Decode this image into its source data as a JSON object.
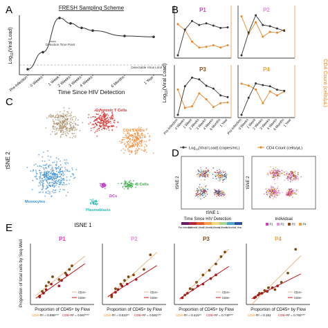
{
  "colors": {
    "viral": "#333333",
    "cd4": "#e8832a",
    "p1": "#d93ab6",
    "p2": "#e58fd6",
    "p3": "#8a4b1a",
    "p4": "#e8a23a",
    "cd4_line": "#e8b98a",
    "cd8_line": "#c0141c",
    "cd4_point": "#8a5200",
    "cd8_point": "#c0141c"
  },
  "panel_letters": [
    "A",
    "B",
    "C",
    "D",
    "E"
  ],
  "panel_a": {
    "title": "FRESH Sampling Scheme",
    "ylabel_pre": "Log",
    "ylabel_sub": "10",
    "ylabel_post": "(Viral Load)",
    "xlabel": "Time Since HIV Detection",
    "annot_detection": "Detection Time Point",
    "annot_limit": "Detectable Virus Limit",
    "ticks": [
      "Pre-Infection",
      "0 Weeks",
      "1 Week",
      "2 Weeks",
      "3 Weeks",
      "4 Weeks",
      "6 Months",
      "1 Year"
    ]
  },
  "panel_b": {
    "ylabel_left_pre": "Log",
    "ylabel_left_sub": "10",
    "ylabel_left_post": "(Viral Load)",
    "ylabel_right": "CD4 Count (cells/μL)",
    "ticks": [
      "Pre-Infection",
      "0 Weeks",
      "1 Week",
      "2 Weeks",
      "3 Weeks",
      "4 Weeks",
      "6 Months",
      "1 Year"
    ],
    "legend_viral_pre": "Log",
    "legend_viral_sub": "10",
    "legend_viral_post": "(Viral Load) (copies/mL)",
    "legend_cd4": "CD4 Count (cells/μL)"
  },
  "panel_c": {
    "xlabel": "tSNE 1",
    "ylabel": "tSNE 2",
    "clusters": [
      {
        "name": "NK Cells",
        "color": "#a8926e"
      },
      {
        "name": "Cytotoxic T Cells",
        "color": "#d92b2b"
      },
      {
        "name": "CD4 T Cells",
        "color": "#f08a35"
      },
      {
        "name": "Monocytes",
        "color": "#3a8fd6"
      },
      {
        "name": "DCs",
        "color": "#c03ac8"
      },
      {
        "name": "B Cells",
        "color": "#3aaa45"
      },
      {
        "name": "Plasmablasts",
        "color": "#2bbbb5"
      }
    ]
  },
  "panel_d": {
    "xlabel": "tSNE 1",
    "ylabel": "tSNE 2",
    "legend_time_title": "Time Since HIV Detection",
    "legend_time_items": [
      "Pre-Infection",
      "0 Weeks",
      "1 Week",
      "2 Weeks",
      "3 Weeks",
      "4 Weeks",
      "6 Months",
      "1 Year"
    ],
    "legend_time_colors": [
      "#6a1b6a",
      "#b0263d",
      "#e0582e",
      "#f2a04a",
      "#f4d77a",
      "#a8d38c",
      "#4fa6c9",
      "#2d4d9e"
    ],
    "legend_ind_title": "Individual",
    "legend_ind_items": [
      "P1",
      "P2",
      "P3",
      "P4"
    ]
  },
  "panel_e": {
    "ylabel": "Proportion of total cells by Seq-Well",
    "xlabel": "Proportion of CD45+ by Flow",
    "legend_cd4": "CD4+",
    "legend_cd8": "CD8+"
  },
  "chart_data": [
    {
      "type": "line",
      "panel": "A",
      "title": "FRESH Sampling Scheme",
      "xlabel": "Time Since HIV Detection",
      "ylabel": "Log10(Viral Load)",
      "categories": [
        "Pre-Infection",
        "0 Weeks",
        "1 Week",
        "2 Weeks",
        "3 Weeks",
        "4 Weeks",
        "6 Months",
        "1 Year"
      ],
      "series": [
        {
          "values": [
            0.3,
            2.2,
            6.0,
            5.4,
            4.9,
            4.6,
            4.0,
            3.9
          ]
        }
      ]
    },
    {
      "type": "line",
      "panel": "B",
      "xlabel": "",
      "ylabel": "Log10(Viral Load)",
      "y2label": "CD4 Count (cells/μL)",
      "categories": [
        "Pre-Infection",
        "0 Weeks",
        "1 Week",
        "2 Weeks",
        "3 Weeks",
        "4 Weeks",
        "6 Months",
        "1 Year"
      ],
      "panels": [
        {
          "name": "P1",
          "viral": [
            0.0,
            4.5,
            6.0,
            5.3,
            5.6,
            5.2,
            4.8,
            4.9
          ],
          "cd4": [
            1100,
            950,
            650,
            500,
            520,
            560,
            500,
            560
          ]
        },
        {
          "name": "P2",
          "viral": [
            0.0,
            4.0,
            7.0,
            5.3,
            5.1,
            4.7,
            4.3,
            null
          ],
          "cd4": [
            1300,
            850,
            1150,
            780,
            900,
            880,
            950,
            null
          ]
        },
        {
          "name": "P3",
          "viral": [
            0.0,
            5.0,
            6.5,
            6.2,
            5.1,
            4.6,
            3.4,
            3.1
          ],
          "cd4": [
            950,
            480,
            520,
            850,
            700,
            500,
            600,
            620
          ]
        },
        {
          "name": "P4",
          "viral": [
            0.0,
            3.0,
            5.5,
            5.2,
            5.0,
            4.4,
            4.2,
            null
          ],
          "cd4": [
            1100,
            1050,
            950,
            600,
            900,
            800,
            900,
            null
          ]
        }
      ]
    },
    {
      "type": "scatter",
      "panel": "E",
      "xlabel": "Proportion of CD45+ by Flow",
      "ylabel": "Proportion of total cells by Seq-Well",
      "panels": [
        {
          "name": "P1",
          "stat_cd4": "R² = 0.888***",
          "stat_cd8": "R² = 0.967***",
          "cd4": [
            [
              0.05,
              0.07
            ],
            [
              0.07,
              0.12
            ],
            [
              0.1,
              0.18
            ],
            [
              0.12,
              0.22
            ],
            [
              0.15,
              0.28
            ],
            [
              0.2,
              0.25
            ],
            [
              0.25,
              0.32
            ],
            [
              0.28,
              0.36
            ],
            [
              0.3,
              0.4
            ]
          ],
          "cd8": [
            [
              0.05,
              0.06
            ],
            [
              0.08,
              0.1
            ],
            [
              0.1,
              0.14
            ],
            [
              0.14,
              0.2
            ],
            [
              0.2,
              0.18
            ],
            [
              0.22,
              0.24
            ],
            [
              0.26,
              0.3
            ]
          ]
        },
        {
          "name": "P2",
          "stat_cd4": "R² = 0.523**",
          "stat_cd8": "R² = 0.581***",
          "cd4": [
            [
              0.05,
              0.06
            ],
            [
              0.08,
              0.15
            ],
            [
              0.12,
              0.2
            ],
            [
              0.15,
              0.24
            ],
            [
              0.18,
              0.28
            ],
            [
              0.22,
              0.3
            ],
            [
              0.3,
              0.36
            ],
            [
              0.35,
              0.52
            ]
          ],
          "cd8": [
            [
              0.05,
              0.08
            ],
            [
              0.08,
              0.11
            ],
            [
              0.1,
              0.14
            ],
            [
              0.13,
              0.18
            ],
            [
              0.17,
              0.2
            ],
            [
              0.24,
              0.25
            ]
          ]
        },
        {
          "name": "P3",
          "stat_cd4": "R² = 0.416**",
          "stat_cd8": "R² = 0.749***",
          "cd4": [
            [
              0.06,
              0.08
            ],
            [
              0.1,
              0.15
            ],
            [
              0.15,
              0.22
            ],
            [
              0.2,
              0.3
            ],
            [
              0.25,
              0.35
            ],
            [
              0.3,
              0.42
            ],
            [
              0.34,
              0.5
            ],
            [
              0.37,
              0.55
            ]
          ],
          "cd8": [
            [
              0.04,
              0.05
            ],
            [
              0.08,
              0.1
            ],
            [
              0.12,
              0.14
            ],
            [
              0.16,
              0.18
            ],
            [
              0.2,
              0.2
            ],
            [
              0.26,
              0.26
            ],
            [
              0.3,
              0.3
            ]
          ]
        },
        {
          "name": "P4",
          "stat_cd4": "R² = 0.162",
          "stat_cd8": "R² = 0.782***",
          "cd4": [
            [
              0.05,
              0.06
            ],
            [
              0.08,
              0.1
            ],
            [
              0.12,
              0.13
            ],
            [
              0.15,
              0.16
            ],
            [
              0.2,
              0.14
            ],
            [
              0.25,
              0.22
            ],
            [
              0.3,
              0.32
            ],
            [
              0.36,
              0.58
            ]
          ],
          "cd8": [
            [
              0.04,
              0.05
            ],
            [
              0.07,
              0.08
            ],
            [
              0.1,
              0.1
            ],
            [
              0.14,
              0.12
            ],
            [
              0.18,
              0.16
            ],
            [
              0.22,
              0.18
            ]
          ]
        }
      ]
    }
  ]
}
